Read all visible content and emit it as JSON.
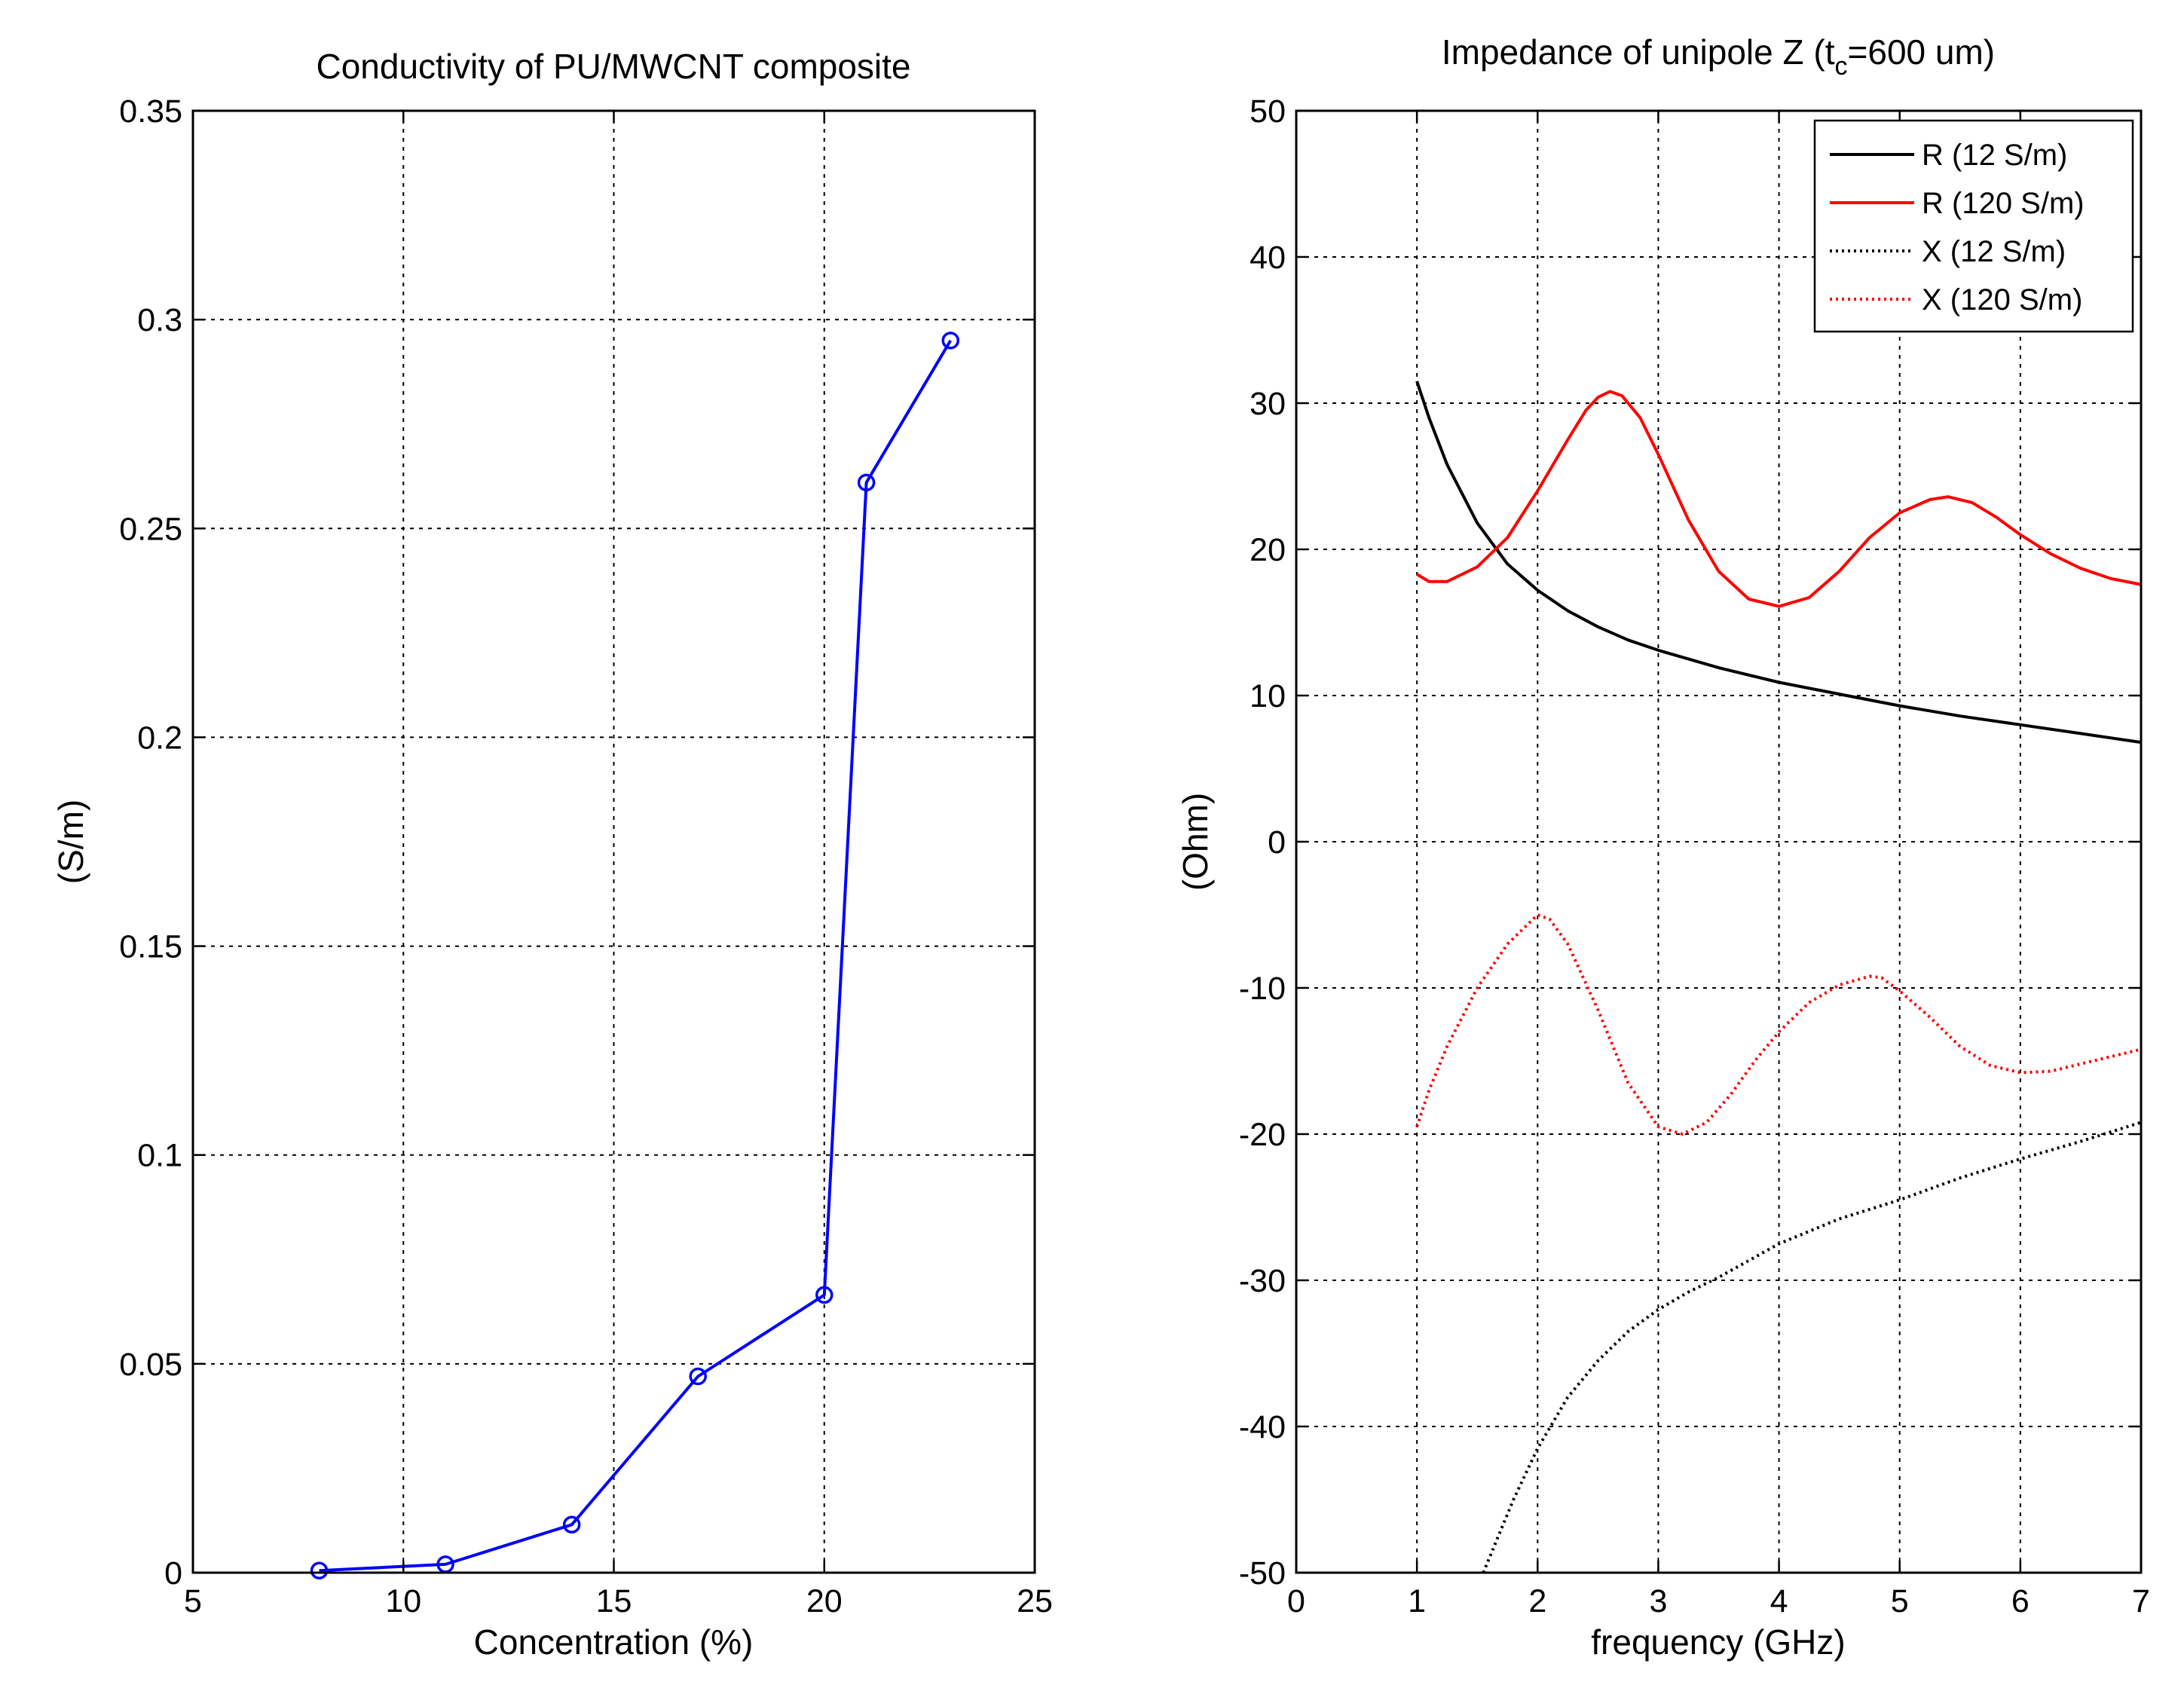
{
  "figure": {
    "charts": [
      "left",
      "right"
    ]
  },
  "chart_data": [
    {
      "id": "left",
      "type": "line",
      "title": "Conductivity of PU/MWCNT composite",
      "xlabel": "Concentration (%)",
      "ylabel": "(S/m)",
      "xlim": [
        5,
        25
      ],
      "ylim": [
        0,
        0.35
      ],
      "grid": true,
      "xticks": [
        5,
        10,
        15,
        20,
        25
      ],
      "xtick_labels": [
        "5",
        "10",
        "15",
        "20",
        "25"
      ],
      "yticks": [
        0,
        0.05,
        0.1,
        0.15,
        0.2,
        0.25,
        0.3,
        0.35
      ],
      "ytick_labels": [
        "0",
        "0.05",
        "0.1",
        "0.15",
        "0.2",
        "0.25",
        "0.3",
        "0.35"
      ],
      "series": [
        {
          "name": "Conductivity",
          "color": "#0000ff",
          "marker": "circle",
          "x": [
            8,
            11,
            14,
            17,
            20,
            21,
            23
          ],
          "y": [
            0.0005,
            0.002,
            0.0115,
            0.047,
            0.0665,
            0.261,
            0.295
          ]
        }
      ]
    },
    {
      "id": "right",
      "type": "line",
      "title_main": "Impedance of unipole Z (t",
      "title_sub": "c",
      "title_tail": "=600 um)",
      "xlabel": "frequency (GHz)",
      "ylabel": "(Ohm)",
      "xlim": [
        0,
        7
      ],
      "ylim": [
        -50,
        50
      ],
      "grid": true,
      "legend_position": "top-right",
      "xticks": [
        0,
        1,
        2,
        3,
        4,
        5,
        6,
        7
      ],
      "xtick_labels": [
        "0",
        "1",
        "2",
        "3",
        "4",
        "5",
        "6",
        "7"
      ],
      "yticks": [
        -50,
        -40,
        -30,
        -20,
        -10,
        0,
        10,
        20,
        30,
        40,
        50
      ],
      "ytick_labels": [
        "-50",
        "-40",
        "-30",
        "-20",
        "-10",
        "0",
        "10",
        "20",
        "30",
        "40",
        "50"
      ],
      "series": [
        {
          "name": "R (12 S/m)",
          "color": "#000000",
          "style": "solid",
          "x": [
            1.0,
            1.1,
            1.25,
            1.5,
            1.75,
            2.0,
            2.25,
            2.5,
            2.75,
            3.0,
            3.5,
            4.0,
            4.5,
            5.0,
            5.5,
            6.0,
            6.5,
            7.0
          ],
          "y": [
            31.5,
            29.0,
            25.8,
            21.8,
            19.0,
            17.2,
            15.8,
            14.7,
            13.8,
            13.1,
            11.9,
            10.9,
            10.1,
            9.3,
            8.6,
            8.0,
            7.4,
            6.8
          ]
        },
        {
          "name": "R (120 S/m)",
          "color": "#ff0000",
          "style": "solid",
          "x": [
            1.0,
            1.1,
            1.25,
            1.5,
            1.75,
            2.0,
            2.25,
            2.4,
            2.5,
            2.6,
            2.7,
            2.85,
            3.0,
            3.25,
            3.5,
            3.75,
            4.0,
            4.25,
            4.5,
            4.75,
            5.0,
            5.25,
            5.4,
            5.6,
            5.8,
            6.0,
            6.25,
            6.5,
            6.75,
            7.0
          ],
          "y": [
            18.3,
            17.8,
            17.8,
            18.8,
            20.8,
            24.0,
            27.5,
            29.5,
            30.4,
            30.8,
            30.5,
            29.0,
            26.5,
            22.0,
            18.5,
            16.6,
            16.1,
            16.7,
            18.5,
            20.8,
            22.5,
            23.4,
            23.6,
            23.2,
            22.2,
            21.0,
            19.7,
            18.7,
            18.0,
            17.6
          ]
        },
        {
          "name": "X (12 S/m)",
          "color": "#000000",
          "style": "dotted",
          "x": [
            1.55,
            1.6,
            1.7,
            1.8,
            2.0,
            2.25,
            2.5,
            2.75,
            3.0,
            3.25,
            3.5,
            4.0,
            4.5,
            5.0,
            5.5,
            6.0,
            6.5,
            7.0
          ],
          "y": [
            -50.0,
            -49.0,
            -47.0,
            -45.0,
            -41.5,
            -38.0,
            -35.5,
            -33.5,
            -32.0,
            -30.8,
            -29.8,
            -27.5,
            -25.8,
            -24.5,
            -23.0,
            -21.7,
            -20.5,
            -19.2
          ]
        },
        {
          "name": "X (120 S/m)",
          "color": "#ff0000",
          "style": "dotted",
          "x": [
            1.0,
            1.1,
            1.25,
            1.5,
            1.75,
            2.0,
            2.1,
            2.25,
            2.5,
            2.75,
            3.0,
            3.2,
            3.4,
            3.6,
            3.8,
            4.0,
            4.25,
            4.5,
            4.75,
            4.85,
            5.0,
            5.25,
            5.5,
            5.75,
            6.0,
            6.25,
            6.5,
            6.75,
            7.0
          ],
          "y": [
            -19.5,
            -17.0,
            -14.0,
            -10.0,
            -7.0,
            -5.0,
            -5.3,
            -7.0,
            -11.5,
            -16.5,
            -19.5,
            -20.0,
            -19.2,
            -17.3,
            -15.0,
            -13.0,
            -11.0,
            -9.8,
            -9.2,
            -9.3,
            -10.2,
            -12.0,
            -14.0,
            -15.3,
            -15.8,
            -15.7,
            -15.2,
            -14.7,
            -14.2
          ]
        }
      ]
    }
  ]
}
